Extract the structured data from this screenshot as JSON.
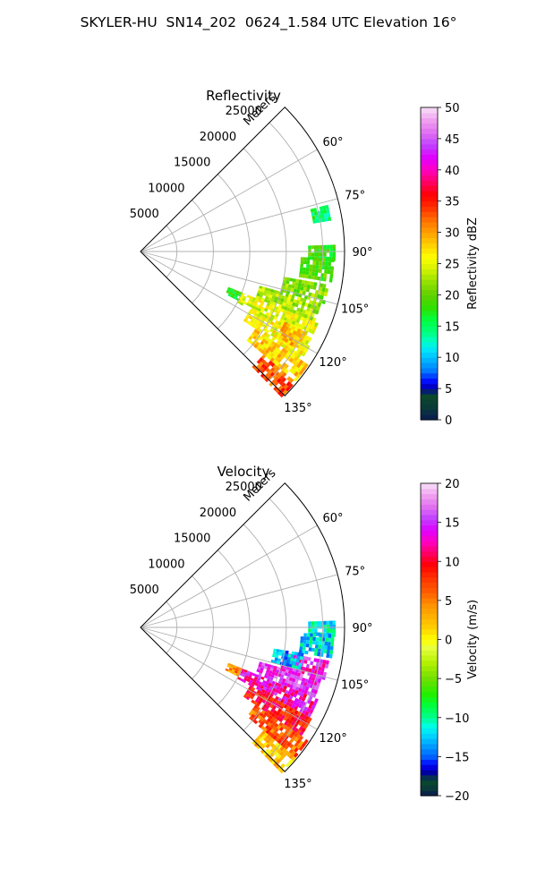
{
  "figure": {
    "suptitle": "SKYLER-HU  SN14_202  0624_1.584 UTC Elevation 16°"
  },
  "colors": {
    "grid": "#b0b0b0",
    "frame": "#000000"
  },
  "chart_data": [
    {
      "type": "heatmap",
      "projection": "polar-sector",
      "title": "Reflectivity",
      "radial_label": "Meters",
      "range_ticks": [
        "5000",
        "10000",
        "15000",
        "20000",
        "25000"
      ],
      "range_values": [
        5000,
        10000,
        15000,
        20000,
        25000
      ],
      "range_max": 28000,
      "angle_ticks": [
        "60°",
        "75°",
        "90°",
        "105°",
        "120°",
        "135°"
      ],
      "angle_values": [
        60,
        75,
        90,
        105,
        120,
        135
      ],
      "angle_range": [
        45,
        135
      ],
      "colorbar": {
        "label": "Reflectivity dBZ",
        "min": 0,
        "max": 50,
        "ticks": [
          "0",
          "5",
          "10",
          "15",
          "20",
          "25",
          "30",
          "35",
          "40",
          "45",
          "50"
        ],
        "tick_values": [
          0,
          5,
          10,
          15,
          20,
          25,
          30,
          35,
          40,
          45,
          50
        ],
        "stops": [
          [
            0,
            "#0a1a50"
          ],
          [
            2,
            "#0a3a3a"
          ],
          [
            4,
            "#0a4a2a"
          ],
          [
            5,
            "#0000a0"
          ],
          [
            6,
            "#0000ff"
          ],
          [
            7,
            "#0040ff"
          ],
          [
            8,
            "#0080ff"
          ],
          [
            9.5,
            "#00b0ff"
          ],
          [
            11,
            "#00e0ff"
          ],
          [
            12.5,
            "#00ffcc"
          ],
          [
            14,
            "#00ff80"
          ],
          [
            16,
            "#00ff40"
          ],
          [
            18,
            "#30e000"
          ],
          [
            20,
            "#60d000"
          ],
          [
            22,
            "#90e000"
          ],
          [
            24,
            "#d0f000"
          ],
          [
            26,
            "#ffff00"
          ],
          [
            28,
            "#ffd000"
          ],
          [
            30,
            "#ffa000"
          ],
          [
            32,
            "#ff7000"
          ],
          [
            34,
            "#ff3000"
          ],
          [
            36,
            "#ff0000"
          ],
          [
            38,
            "#ff0060"
          ],
          [
            40,
            "#ff00c0"
          ],
          [
            42,
            "#e000ff"
          ],
          [
            44,
            "#c040ff"
          ],
          [
            46,
            "#e070f0"
          ],
          [
            48,
            "#f0a0f0"
          ],
          [
            50,
            "#f8e0f8"
          ]
        ]
      },
      "echo_regions": [
        {
          "az": [
            88,
            92
          ],
          "r": [
            23000,
            26500
          ],
          "value": 18
        },
        {
          "az": [
            76,
            80
          ],
          "r": [
            24000,
            26500
          ],
          "value": 15
        },
        {
          "az": [
            92,
            99
          ],
          "r": [
            22000,
            26500
          ],
          "value": 19
        },
        {
          "az": [
            100,
            106
          ],
          "r": [
            20000,
            26000
          ],
          "value": 21
        },
        {
          "az": [
            106,
            112
          ],
          "r": [
            17000,
            25500
          ],
          "value": 23
        },
        {
          "az": [
            112,
            118
          ],
          "r": [
            15000,
            26000
          ],
          "value": 25
        },
        {
          "az": [
            118,
            124
          ],
          "r": [
            17000,
            26500
          ],
          "value": 26
        },
        {
          "az": [
            124,
            130
          ],
          "r": [
            19000,
            27500
          ],
          "value": 28
        },
        {
          "az": [
            130,
            135
          ],
          "r": [
            22000,
            27500
          ],
          "value": 33
        },
        {
          "az": [
            116,
            122
          ],
          "r": [
            22000,
            25000
          ],
          "value": 29
        },
        {
          "az": [
            112,
            116
          ],
          "r": [
            13000,
            15000
          ],
          "value": 17
        }
      ]
    },
    {
      "type": "heatmap",
      "projection": "polar-sector",
      "title": "Velocity",
      "radial_label": "Meters",
      "range_ticks": [
        "5000",
        "10000",
        "15000",
        "20000",
        "25000"
      ],
      "range_values": [
        5000,
        10000,
        15000,
        20000,
        25000
      ],
      "range_max": 28000,
      "angle_ticks": [
        "60°",
        "75°",
        "90°",
        "105°",
        "120°",
        "135°"
      ],
      "angle_values": [
        60,
        75,
        90,
        105,
        120,
        135
      ],
      "angle_range": [
        45,
        135
      ],
      "colorbar": {
        "label": "Velocity (m/s)",
        "min": -20,
        "max": 20,
        "ticks": [
          "−20",
          "−15",
          "−10",
          "−5",
          "0",
          "5",
          "10",
          "15",
          "20"
        ],
        "tick_values": [
          -20,
          -15,
          -10,
          -5,
          0,
          5,
          10,
          15,
          20
        ],
        "stops": [
          [
            -20,
            "#0a1a50"
          ],
          [
            -19,
            "#0a3a3a"
          ],
          [
            -18,
            "#0a4a2a"
          ],
          [
            -17,
            "#0000a0"
          ],
          [
            -16,
            "#0000ff"
          ],
          [
            -15,
            "#0060ff"
          ],
          [
            -13.5,
            "#00a0ff"
          ],
          [
            -12,
            "#00e0ff"
          ],
          [
            -11,
            "#00ffe0"
          ],
          [
            -10,
            "#00ff90"
          ],
          [
            -8.5,
            "#00ff40"
          ],
          [
            -7,
            "#20f000"
          ],
          [
            -5,
            "#70e000"
          ],
          [
            -3,
            "#b0f000"
          ],
          [
            -1,
            "#e8ff40"
          ],
          [
            0,
            "#ffff00"
          ],
          [
            1.5,
            "#ffd000"
          ],
          [
            3,
            "#ffb000"
          ],
          [
            4.5,
            "#ff9000"
          ],
          [
            6,
            "#ff6000"
          ],
          [
            8,
            "#ff3000"
          ],
          [
            9.5,
            "#ff0000"
          ],
          [
            11,
            "#ff0060"
          ],
          [
            12.5,
            "#ff00c0"
          ],
          [
            14,
            "#e000ff"
          ],
          [
            15.5,
            "#c040ff"
          ],
          [
            17,
            "#e070f0"
          ],
          [
            18.5,
            "#f0a0f0"
          ],
          [
            20,
            "#f8e0f8"
          ]
        ]
      },
      "echo_regions": [
        {
          "az": [
            88,
            92
          ],
          "r": [
            23000,
            26500
          ],
          "value": -11
        },
        {
          "az": [
            92,
            99
          ],
          "r": [
            22000,
            26500
          ],
          "value": -12
        },
        {
          "az": [
            100,
            106
          ],
          "r": [
            20000,
            26000
          ],
          "value": 14
        },
        {
          "az": [
            99,
            104
          ],
          "r": [
            18500,
            22500
          ],
          "value": -13
        },
        {
          "az": [
            106,
            112
          ],
          "r": [
            17000,
            25500
          ],
          "value": 15
        },
        {
          "az": [
            112,
            118
          ],
          "r": [
            15000,
            26000
          ],
          "value": 13
        },
        {
          "az": [
            118,
            124
          ],
          "r": [
            17000,
            26500
          ],
          "value": 9
        },
        {
          "az": [
            124,
            130
          ],
          "r": [
            19000,
            27500
          ],
          "value": 6
        },
        {
          "az": [
            130,
            135
          ],
          "r": [
            22000,
            27500
          ],
          "value": 2
        },
        {
          "az": [
            112,
            116
          ],
          "r": [
            13000,
            15000
          ],
          "value": 5
        }
      ]
    }
  ]
}
